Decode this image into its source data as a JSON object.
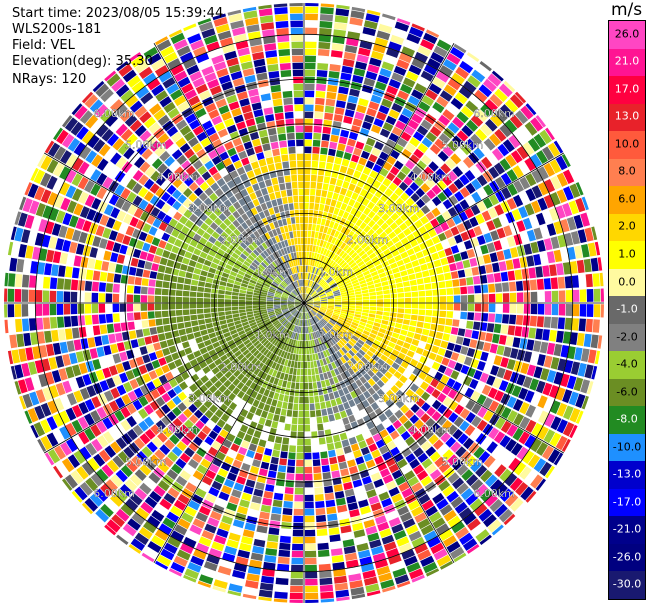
{
  "header": {
    "start_time": "Start time: 2023/08/05 15:39:44",
    "instrument": "WLS200s-181",
    "field": "Field: VEL",
    "elevation": "Elevation(deg): 35.30",
    "nrays": "NRays: 120"
  },
  "chart_data": {
    "type": "heatmap",
    "projection": "polar PPI scan",
    "title": "",
    "unit": "m/s",
    "rays": 120,
    "range_rings_km": [
      1.0,
      2.0,
      3.0,
      4.0,
      5.0,
      6.0
    ],
    "range_labels": [
      "1.0km",
      "2.00km",
      "3.00km",
      "4.00km",
      "5.00km",
      "6.00km"
    ],
    "max_range_km": 6.7,
    "spokes_deg": [
      0,
      30,
      60,
      90,
      120,
      150,
      180,
      210,
      240,
      270,
      300,
      330
    ],
    "colorbar": {
      "ticks": [
        "26.0",
        "21.0",
        "17.0",
        "13.0",
        "10.0",
        "8.0",
        "6.0",
        "2.0",
        "1.0",
        "0.0",
        "-1.0",
        "-2.0",
        "-4.0",
        "-6.0",
        "-8.0",
        "-10.0",
        "-13.0",
        "-17.0",
        "-21.0",
        "-26.0",
        "-30.0"
      ],
      "colors": [
        "#ff46c3",
        "#ff1493",
        "#ff0040",
        "#e8222a",
        "#ff5a3c",
        "#ff7f50",
        "#ffa500",
        "#ffd700",
        "#ffff00",
        "#fffaa0",
        "#696969",
        "#808080",
        "#9acd32",
        "#6b8e23",
        "#228b22",
        "#1e90ff",
        "#0000cd",
        "#0000ff",
        "#00008b",
        "#000080",
        "#191970"
      ]
    },
    "regions": [
      {
        "range_km": [
          0.0,
          0.9
        ],
        "description": "mixed gray / olive / yellow",
        "values": [
          -2.0,
          0.0,
          1.0
        ]
      },
      {
        "range_km": [
          0.9,
          1.6
        ],
        "description": "yellow east, green west, gray ring",
        "values": [
          2.0,
          -2.0,
          0.0
        ]
      },
      {
        "range_km": [
          1.6,
          3.3
        ],
        "description": "yellow north/east, olive south/west, gray band",
        "values": [
          2.0,
          -4.0,
          0.0
        ]
      },
      {
        "range_km": [
          3.3,
          6.7
        ],
        "description": "noise: random multicolor gates",
        "values": []
      }
    ]
  }
}
